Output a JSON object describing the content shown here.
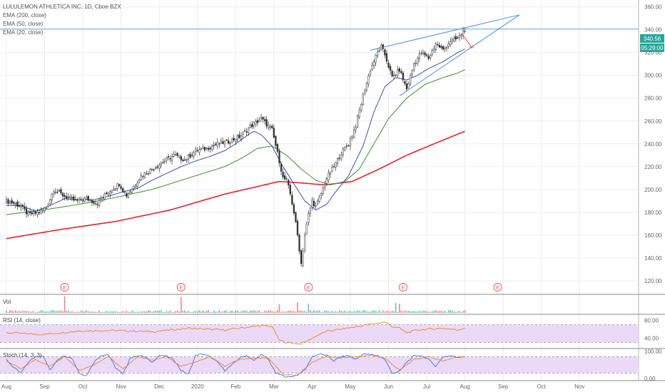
{
  "legend": {
    "title": "LULULEMON ATHLETICA INC, 1D, Cboe BZX",
    "ema200": "EMA (200, close)",
    "ema50": "EMA (50, close)",
    "ema20": "EMA (20, close)"
  },
  "price_badge": {
    "price": "340.56",
    "countdown": "05:29:00"
  },
  "panes": {
    "vol_label": "Vol",
    "rsi_label": "RSI (14, close)",
    "stoch_label": "Stoch (14, 3, 3)"
  },
  "earnings_marker": "E",
  "colors": {
    "up": "#26a69a",
    "down": "#ef5350",
    "candle": "#333333",
    "ema20": "#3a4fb8",
    "ema50": "#4d9a3a",
    "ema200": "#e8202a",
    "trendline": "#4a90d9",
    "rsi": "#f57c00",
    "stoch_k": "#2962ff",
    "stoch_d": "#f57c00",
    "band": "#e9d5f7"
  },
  "chart_data": [
    {
      "type": "candlestick",
      "title": "LULULEMON ATHLETICA INC, 1D, Cboe BZX",
      "x_ticks": [
        "Aug",
        "Sep",
        "Oct",
        "Nov",
        "Dec",
        "2020",
        "Feb",
        "Mar",
        "Apr",
        "May",
        "Jun",
        "Jul",
        "Aug",
        "Sep",
        "Oct",
        "Nov"
      ],
      "y_ticks": [
        "120.00",
        "140.00",
        "160.00",
        "180.00",
        "200.00",
        "220.00",
        "240.00",
        "260.00",
        "280.00",
        "300.00",
        "320.00",
        "340.00",
        "360.00"
      ],
      "ylim": [
        110,
        366
      ],
      "x_ticks_index": [
        0,
        21,
        42,
        63,
        84,
        105,
        126,
        147,
        168,
        189,
        210,
        231,
        252,
        273,
        294,
        315
      ],
      "anchors": {
        "index": [
          0,
          4,
          8,
          12,
          18,
          22,
          26,
          32,
          38,
          44,
          50,
          56,
          62,
          66,
          70,
          74,
          80,
          86,
          92,
          98,
          104,
          110,
          116,
          122,
          128,
          134,
          140,
          146,
          150,
          152,
          154,
          156,
          158,
          160,
          162,
          164,
          166,
          168,
          170,
          172,
          176,
          180,
          184,
          188,
          192,
          196,
          200,
          204,
          206,
          208,
          212,
          216,
          220,
          224,
          228,
          232,
          236,
          240,
          244,
          248,
          252
        ],
        "close": [
          190,
          188,
          185,
          178,
          180,
          184,
          200,
          194,
          190,
          192,
          188,
          198,
          205,
          195,
          203,
          212,
          218,
          224,
          230,
          226,
          234,
          236,
          240,
          242,
          246,
          255,
          262,
          252,
          225,
          210,
          208,
          196,
          180,
          160,
          135,
          160,
          178,
          190,
          185,
          192,
          210,
          220,
          232,
          240,
          256,
          282,
          305,
          320,
          325,
          318,
          298,
          305,
          288,
          310,
          320,
          315,
          328,
          322,
          330,
          332,
          340.56
        ]
      },
      "ema20_anchors": {
        "index": [
          0,
          8,
          16,
          24,
          32,
          40,
          48,
          56,
          64,
          72,
          80,
          88,
          96,
          104,
          112,
          120,
          126,
          132,
          136,
          140,
          146,
          152,
          158,
          164,
          170,
          176,
          180,
          188,
          196,
          202,
          208,
          214,
          220,
          226,
          232,
          240,
          248,
          252
        ],
        "value": [
          186,
          186,
          181,
          186,
          192,
          191,
          191,
          194,
          198,
          201,
          208,
          214,
          220,
          225,
          229,
          234,
          240,
          247,
          251,
          248,
          238,
          220,
          205,
          190,
          182,
          187,
          196,
          212,
          238,
          268,
          290,
          298,
          296,
          300,
          306,
          312,
          320,
          323
        ]
      },
      "ema50_anchors": {
        "index": [
          0,
          20,
          40,
          60,
          80,
          100,
          120,
          130,
          138,
          146,
          154,
          162,
          170,
          178,
          186,
          194,
          202,
          210,
          220,
          230,
          240,
          248,
          252
        ],
        "value": [
          178,
          182,
          187,
          193,
          200,
          210,
          220,
          228,
          236,
          238,
          230,
          218,
          208,
          204,
          207,
          218,
          240,
          262,
          280,
          292,
          298,
          302,
          305
        ]
      },
      "ema200_anchors": {
        "index": [
          0,
          30,
          60,
          90,
          120,
          150,
          160,
          175,
          190,
          205,
          220,
          235,
          252
        ],
        "value": [
          157,
          165,
          172,
          182,
          196,
          207,
          206,
          204,
          207,
          218,
          230,
          240,
          251
        ]
      },
      "trendlines": [
        {
          "from": [
            200,
            322
          ],
          "to": [
            282,
            353
          ]
        },
        {
          "from": [
            216,
            282
          ],
          "to": [
            282,
            353
          ]
        }
      ],
      "horizontal_line": 340.56,
      "annotation_arrow": {
        "from": [
          250,
          337
        ],
        "to": [
          256,
          324
        ]
      },
      "earnings_index": [
        32,
        96,
        166,
        218,
        270
      ]
    },
    {
      "type": "bar",
      "title": "Vol",
      "description_values": "daily volume, relative 0-1",
      "spikes": {
        "index": [
          32,
          96,
          150,
          160,
          166,
          214,
          216
        ],
        "value": [
          1.0,
          0.95,
          0.45,
          0.6,
          0.5,
          0.55,
          0.5
        ]
      }
    },
    {
      "type": "line",
      "title": "RSI (14, close)",
      "y_ticks": [
        "40.00",
        "80.00"
      ],
      "ylim": [
        18,
        90
      ],
      "bands": [
        30,
        70
      ],
      "anchors": {
        "index": [
          0,
          20,
          40,
          60,
          80,
          100,
          120,
          140,
          146,
          150,
          154,
          158,
          162,
          166,
          170,
          176,
          184,
          192,
          200,
          208,
          212,
          216,
          220,
          226,
          232,
          240,
          248,
          252
        ],
        "value": [
          52,
          48,
          56,
          57,
          54,
          62,
          58,
          68,
          66,
          35,
          30,
          28,
          27,
          35,
          44,
          55,
          60,
          65,
          71,
          76,
          66,
          62,
          52,
          58,
          60,
          62,
          58,
          63
        ]
      }
    },
    {
      "type": "line",
      "title": "Stoch (14, 3, 3)",
      "y_ticks": [
        "100.00",
        "0.00"
      ],
      "ylim": [
        -5,
        105
      ],
      "bands": [
        20,
        80
      ],
      "k_anchors": {
        "index": [
          0,
          4,
          8,
          12,
          16,
          20,
          24,
          28,
          32,
          36,
          40,
          44,
          48,
          52,
          56,
          60,
          64,
          68,
          72,
          76,
          80,
          84,
          88,
          92,
          96,
          100,
          104,
          108,
          112,
          116,
          120,
          124,
          128,
          132,
          136,
          140,
          144,
          148,
          152,
          156,
          160,
          164,
          168,
          172,
          176,
          180,
          184,
          188,
          192,
          196,
          200,
          204,
          208,
          212,
          216,
          220,
          224,
          228,
          232,
          236,
          240,
          244,
          248,
          252
        ],
        "value": [
          70,
          40,
          20,
          60,
          80,
          85,
          30,
          70,
          85,
          75,
          20,
          10,
          60,
          85,
          88,
          40,
          15,
          75,
          85,
          80,
          60,
          85,
          82,
          70,
          30,
          15,
          85,
          90,
          80,
          60,
          30,
          50,
          75,
          85,
          65,
          88,
          70,
          20,
          10,
          5,
          15,
          30,
          80,
          90,
          85,
          65,
          80,
          85,
          70,
          90,
          88,
          85,
          70,
          20,
          25,
          60,
          82,
          85,
          70,
          45,
          80,
          84,
          78,
          82
        ]
      },
      "d_anchors": {
        "index": [
          0,
          8,
          16,
          24,
          32,
          40,
          48,
          56,
          64,
          72,
          80,
          88,
          96,
          104,
          112,
          120,
          128,
          136,
          144,
          152,
          160,
          168,
          176,
          184,
          192,
          200,
          208,
          216,
          224,
          232,
          240,
          248,
          252
        ],
        "value": [
          65,
          35,
          70,
          45,
          82,
          30,
          50,
          82,
          35,
          80,
          68,
          80,
          45,
          60,
          80,
          45,
          70,
          75,
          75,
          15,
          12,
          60,
          82,
          76,
          80,
          85,
          75,
          30,
          70,
          80,
          65,
          80,
          80
        ]
      }
    }
  ]
}
